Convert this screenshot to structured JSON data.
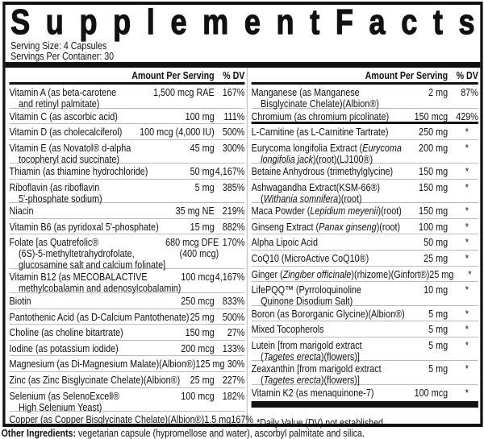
{
  "title": "Supplement Facts",
  "serving_size": "Serving Size: 4 Capsules",
  "servings_per_container": "Servings Per Container: 30",
  "headers": {
    "amount": "Amount Per Serving",
    "dv": "% DV"
  },
  "left_rows": [
    {
      "name": "Vitamin A (as beta-carotene\nand retinyl palmitate)",
      "amount": "1,500 mcg RAE",
      "dv": "167%"
    },
    {
      "name": "Vitamin C (as ascorbic acid)",
      "amount": "100 mg",
      "dv": "111%"
    },
    {
      "name": "Vitamin D (as cholecalciferol)",
      "amount": "100 mcg (4,000 IU)",
      "dv": "500%"
    },
    {
      "name": "Vitamin E (as Novatol® d-alpha\ntocopheryl acid succinate)",
      "amount": "45 mg",
      "dv": "300%"
    },
    {
      "name": "Thiamin (as thiamine hydrochloride)",
      "amount": "50 mg",
      "dv": "4,167%"
    },
    {
      "name": "Riboflavin (as riboflavin\n5'-phosphate sodium)",
      "amount": "5 mg",
      "dv": "385%"
    },
    {
      "name": "Niacin",
      "amount": "35 mg NE",
      "dv": "219%"
    },
    {
      "name": "Vitamin B6 (as pyridoxal 5'-phosphate)",
      "amount": "15 mg",
      "dv": "882%"
    },
    {
      "name": "Folate [as Quatrefolic®\n(6S)-5-methyltetrahydrofolate,\nglucosamine salt and calcium folinate]",
      "amount": "680 mcg DFE\n(400 mcg)",
      "dv": "170%"
    },
    {
      "name": "Vitamin B12 (as MECOBALACTIVE\nmethylcobalamin and adenosylcobalamin)",
      "amount": "100 mcg",
      "dv": "4,167%"
    },
    {
      "name": "Biotin",
      "amount": "250 mcg",
      "dv": "833%"
    },
    {
      "name": "Pantothenic Acid (as D-Calcium Pantothenate)",
      "amount": "25 mg",
      "dv": "500%"
    },
    {
      "name": "Choline (as choline bitartrate)",
      "amount": "150 mg",
      "dv": "27%"
    },
    {
      "name": "Iodine (as potassium iodide)",
      "amount": "200 mcg",
      "dv": "133%"
    },
    {
      "name": "Magnesium (as Di-Magnesium Malate)(Albion®)",
      "amount": "125 mg",
      "dv": "30%"
    },
    {
      "name": "Zinc (as Zinc Bisglycinate Chelate)(Albion®)",
      "amount": "25 mg",
      "dv": "227%"
    },
    {
      "name": "Selenium (as SelenoExcell®\nHigh Selenium Yeast)",
      "amount": "100 mcg",
      "dv": "182%"
    },
    {
      "name": "Copper (as Copper Bisglycinate Chelate)(Albion®)",
      "amount": "1.5 mg",
      "dv": "167%"
    }
  ],
  "right_rows": [
    {
      "name": "Manganese (as Manganese\nBisglycinate Chelate)(Albion®)",
      "amount": "2 mg",
      "dv": "87%"
    },
    {
      "name": "Chromium (as chromium picolinate)",
      "amount": "150 mcg",
      "dv": "429%"
    },
    {
      "name": "L-Carnitine (as L-Carnitine Tartrate)",
      "amount": "250 mg",
      "dv": "*"
    },
    {
      "name": "Eurycoma longifolia Extract (_Eurycoma_\n_longifolia jack_)(root)(LJ100®)",
      "amount": "200 mg",
      "dv": "*"
    },
    {
      "name": "Betaine Anhydrous (trimethylglycine)",
      "amount": "150 mg",
      "dv": "*"
    },
    {
      "name": "Ashwagandha Extract(KSM-66®)\n(_Withania somnifera_)(root)",
      "amount": "150 mg",
      "dv": "*"
    },
    {
      "name": "Maca Powder (_Lepidium meyenii_)(root)",
      "amount": "150 mg",
      "dv": "*"
    },
    {
      "name": "Ginseng Extract (_Panax ginseng_)(root)",
      "amount": "100 mg",
      "dv": "*"
    },
    {
      "name": "Alpha Lipoic Acid",
      "amount": "50 mg",
      "dv": "*"
    },
    {
      "name": "CoQ10 (MicroActive CoQ10®)",
      "amount": "25 mg",
      "dv": "*"
    },
    {
      "name": "Ginger (_Zingiber officinale_)(rhizome)(Ginfort®)",
      "amount": "25 mg",
      "dv": "*"
    },
    {
      "name": "LifePQQ™ (Pyrroloquinoline\nQuinone Disodium Salt)",
      "amount": "10 mg",
      "dv": "*"
    },
    {
      "name": "Boron (as Bororganic Glycine)(Albion®)",
      "amount": "5 mg",
      "dv": "*"
    },
    {
      "name": "Mixed Tocopherols",
      "amount": "5 mg",
      "dv": "*"
    },
    {
      "name": "Lutein [from marigold extract\n(_Tagetes erecta_)(flowers)]",
      "amount": "5 mg",
      "dv": "*"
    },
    {
      "name": "Zeaxanthin [from marigold extract\n(_Tagetes erecta_)(flowers)]",
      "amount": "5 mg",
      "dv": "*"
    },
    {
      "name": "Vitamin K2 (as menaquinone-7)",
      "amount": "100 mcg",
      "dv": "*"
    }
  ],
  "footnote": "*Daily Value (DV) not established.",
  "other_ingredients": {
    "label": "Other Ingredients:",
    "text": " vegetarian capsule (hypromellose and water), ascorbyl palmitate and silica."
  }
}
